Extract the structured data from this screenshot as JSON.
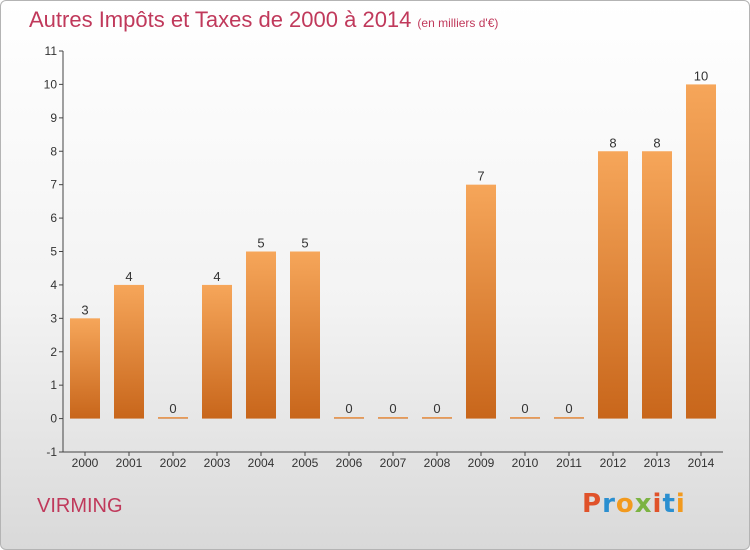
{
  "chart_data": {
    "type": "bar",
    "title": "Autres Impôts et Taxes de 2000 à 2014",
    "subtitle": "(en milliers d'€)",
    "categories": [
      "2000",
      "2001",
      "2002",
      "2003",
      "2004",
      "2005",
      "2006",
      "2007",
      "2008",
      "2009",
      "2010",
      "2011",
      "2012",
      "2013",
      "2014"
    ],
    "values": [
      3,
      4,
      0,
      4,
      5,
      5,
      0,
      0,
      0,
      7,
      0,
      0,
      8,
      8,
      10
    ],
    "ylim": [
      -1,
      11
    ],
    "yticks": [
      "-1",
      "0",
      "1",
      "2",
      "3",
      "4",
      "5",
      "6",
      "7",
      "8",
      "9",
      "10",
      "11"
    ],
    "grid": false,
    "xlabel": "",
    "ylabel": ""
  },
  "footer": {
    "city": "VIRMING",
    "logo": "Proxiti"
  },
  "colors": {
    "title": "#c0395b",
    "bar_top": "#f6a65a",
    "bar_bottom": "#c8661b",
    "logo_letters": [
      "#e0522a",
      "#2a8fd0",
      "#f29a1e",
      "#7cb342",
      "#e0522a",
      "#2a8fd0",
      "#f29a1e"
    ]
  }
}
